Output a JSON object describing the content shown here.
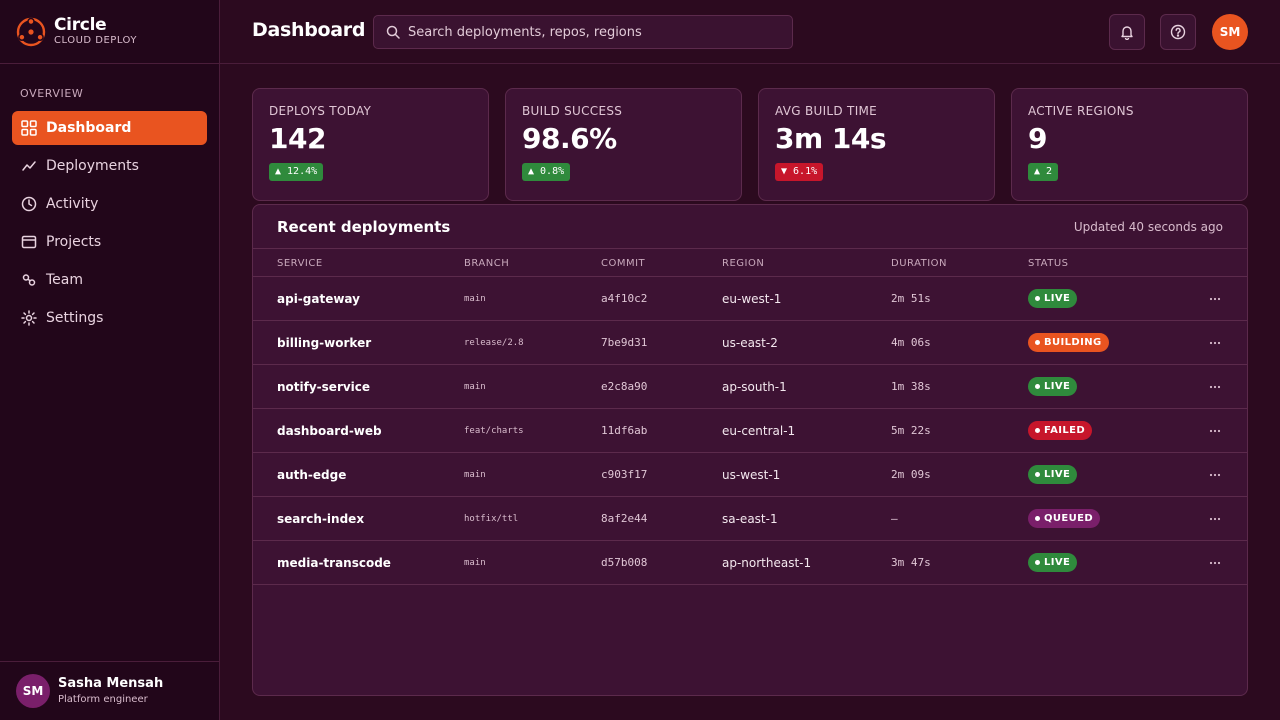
{
  "brand": {
    "name": "Circle",
    "subtitle": "CLOUD DEPLOY",
    "accent": "#e95420"
  },
  "sidebar": {
    "section": "OVERVIEW",
    "items": [
      {
        "label": "Dashboard",
        "icon": "grid-icon",
        "active": true
      },
      {
        "label": "Deployments",
        "icon": "trend-icon"
      },
      {
        "label": "Activity",
        "icon": "clock-icon"
      },
      {
        "label": "Projects",
        "icon": "folder-icon"
      },
      {
        "label": "Team",
        "icon": "team-icon"
      },
      {
        "label": "Settings",
        "icon": "gear-icon"
      }
    ],
    "user": {
      "initials": "SM",
      "name": "Sasha Mensah",
      "role": "Platform engineer"
    }
  },
  "header": {
    "title": "Dashboard",
    "search_placeholder": "Search deployments, repos, regions",
    "avatar_initials": "SM"
  },
  "stats": [
    {
      "label": "DEPLOYS TODAY",
      "value": "142",
      "delta": "▲ 12.4%",
      "trend": "up"
    },
    {
      "label": "BUILD SUCCESS",
      "value": "98.6%",
      "delta": "▲ 0.8%",
      "trend": "up"
    },
    {
      "label": "AVG BUILD TIME",
      "value": "3m 14s",
      "delta": "▼ 6.1%",
      "trend": "down"
    },
    {
      "label": "ACTIVE REGIONS",
      "value": "9",
      "delta": "▲ 2",
      "trend": "up"
    }
  ],
  "deployments": {
    "title": "Recent deployments",
    "updated": "Updated 40 seconds ago",
    "columns": [
      "SERVICE",
      "BRANCH",
      "COMMIT",
      "REGION",
      "DURATION",
      "STATUS"
    ],
    "status_colors": {
      "LIVE": "#2f8a3c",
      "BUILDING": "#e95420",
      "FAILED": "#c7162b",
      "QUEUED": "#7a1f6a"
    },
    "rows": [
      {
        "service": "api-gateway",
        "branch": "main",
        "commit": "a4f10c2",
        "region": "eu-west-1",
        "duration": "2m 51s",
        "status": "LIVE"
      },
      {
        "service": "billing-worker",
        "branch": "release/2.8",
        "commit": "7be9d31",
        "region": "us-east-2",
        "duration": "4m 06s",
        "status": "BUILDING"
      },
      {
        "service": "notify-service",
        "branch": "main",
        "commit": "e2c8a90",
        "region": "ap-south-1",
        "duration": "1m 38s",
        "status": "LIVE"
      },
      {
        "service": "dashboard-web",
        "branch": "feat/charts",
        "commit": "11df6ab",
        "region": "eu-central-1",
        "duration": "5m 22s",
        "status": "FAILED"
      },
      {
        "service": "auth-edge",
        "branch": "main",
        "commit": "c903f17",
        "region": "us-west-1",
        "duration": "2m 09s",
        "status": "LIVE"
      },
      {
        "service": "search-index",
        "branch": "hotfix/ttl",
        "commit": "8af2e44",
        "region": "sa-east-1",
        "duration": "–",
        "status": "QUEUED"
      },
      {
        "service": "media-transcode",
        "branch": "main",
        "commit": "d57b008",
        "region": "ap-northeast-1",
        "duration": "3m 47s",
        "status": "LIVE"
      }
    ]
  }
}
